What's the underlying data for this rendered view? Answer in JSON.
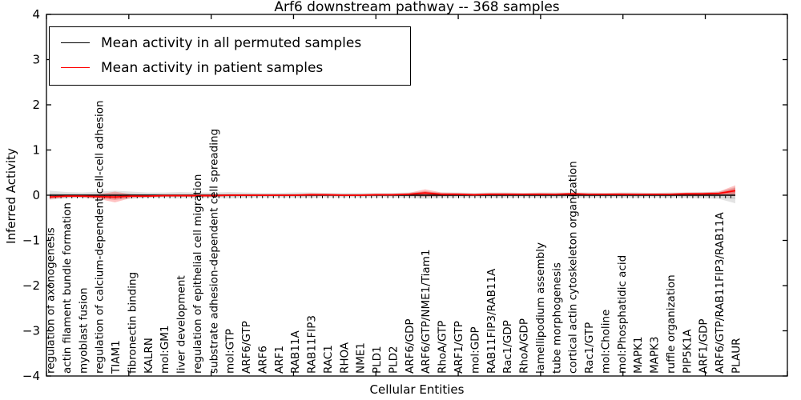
{
  "chart_data": {
    "type": "line",
    "title": "Arf6 downstream pathway -- 368 samples",
    "xlabel": "Cellular Entities",
    "ylabel": "Inferred Activity",
    "ylim": [
      -4,
      4
    ],
    "yticks": [
      4,
      3,
      2,
      1,
      0,
      -1,
      -2,
      -3,
      -4
    ],
    "ytick_labels": [
      "4",
      "3",
      "2",
      "1",
      "0",
      "−1",
      "−2",
      "−3",
      "−4"
    ],
    "grid": false,
    "legend_position": "upper left",
    "categories": [
      "regulation of axonogenesis",
      "actin filament bundle formation",
      "myoblast fusion",
      "regulation of calcium-dependent cell-cell adhesion",
      "TIAM1",
      "fibronectin binding",
      "KALRN",
      "mol:GM1",
      "liver development",
      "regulation of epithelial cell migration",
      "substrate adhesion-dependent cell spreading",
      "mol:GTP",
      "ARF6/GTP",
      "ARF6",
      "ARF1",
      "RAB11A",
      "RAB11FIP3",
      "RAC1",
      "RHOA",
      "NME1",
      "PLD1",
      "PLD2",
      "ARF6/GDP",
      "ARF6/GTP/NME1/Tiam1",
      "RhoA/GTP",
      "ARF1/GTP",
      "mol:GDP",
      "RAB11FIP3/RAB11A",
      "Rac1/GDP",
      "RhoA/GDP",
      "lamellipodium assembly",
      "tube morphogenesis",
      "cortical actin cytoskeleton organization",
      "Rac1/GTP",
      "mol:Choline",
      "mol:Phosphatidic acid",
      "MAPK1",
      "MAPK3",
      "ruffle organization",
      "PIP5K1A",
      "ARF1/GDP",
      "ARF6/GTP/RAB11FIP3/RAB11A",
      "PLAUR"
    ],
    "series": [
      {
        "name": "Mean activity in all permuted samples",
        "color": "#000000",
        "values": [
          0,
          0,
          0,
          0,
          0,
          0,
          0,
          0,
          0,
          0,
          0,
          0,
          0,
          0,
          0,
          0,
          0,
          0,
          0,
          0,
          0,
          0,
          0,
          0,
          0,
          0,
          0,
          0,
          0,
          0,
          0,
          0,
          0,
          0,
          0,
          0,
          0,
          0,
          0,
          0,
          0,
          0,
          0
        ]
      },
      {
        "name": "Mean activity in patient samples",
        "color": "#ff0000",
        "values": [
          -0.04,
          -0.02,
          -0.02,
          -0.03,
          -0.04,
          -0.02,
          -0.02,
          -0.01,
          -0.01,
          -0.01,
          -0.01,
          0,
          0,
          0,
          0,
          0,
          0.01,
          0.01,
          0,
          0,
          0.01,
          0.01,
          0.02,
          0.05,
          0.02,
          0.02,
          0.01,
          0.02,
          0.02,
          0.02,
          0.02,
          0.02,
          0.03,
          0.02,
          0.02,
          0.02,
          0.02,
          0.02,
          0.02,
          0.03,
          0.03,
          0.04,
          0.1
        ]
      }
    ],
    "bands": [
      {
        "name": "permuted samples range",
        "color": "#999999",
        "center_series": 0,
        "halfwidths": [
          0.1,
          0.07,
          0.06,
          0.08,
          0.1,
          0.08,
          0.06,
          0.06,
          0.07,
          0.06,
          0.06,
          0.07,
          0.06,
          0.05,
          0.05,
          0.06,
          0.06,
          0.05,
          0.05,
          0.05,
          0.05,
          0.05,
          0.06,
          0.08,
          0.06,
          0.06,
          0.05,
          0.06,
          0.06,
          0.05,
          0.06,
          0.06,
          0.06,
          0.06,
          0.05,
          0.06,
          0.06,
          0.05,
          0.06,
          0.06,
          0.07,
          0.08,
          0.18
        ]
      },
      {
        "name": "patient samples range",
        "color": "#ff0000",
        "center_series": 1,
        "halfwidths": [
          0.05,
          0.03,
          0.03,
          0.05,
          0.12,
          0.04,
          0.03,
          0.02,
          0.02,
          0.03,
          0.03,
          0.02,
          0.02,
          0.02,
          0.02,
          0.02,
          0.03,
          0.02,
          0.02,
          0.02,
          0.02,
          0.02,
          0.03,
          0.08,
          0.04,
          0.03,
          0.02,
          0.03,
          0.03,
          0.02,
          0.03,
          0.02,
          0.03,
          0.02,
          0.02,
          0.03,
          0.02,
          0.02,
          0.02,
          0.03,
          0.03,
          0.04,
          0.12
        ]
      }
    ]
  },
  "legend": {
    "items": [
      {
        "label": "Mean activity in all permuted samples",
        "color": "#000000"
      },
      {
        "label": "Mean activity in patient samples",
        "color": "#ff0000"
      }
    ]
  }
}
